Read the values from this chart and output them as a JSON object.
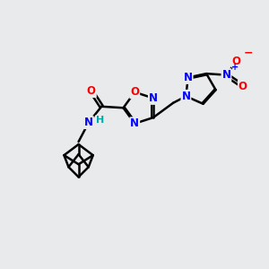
{
  "bg_color": "#e8eaec",
  "atom_colors": {
    "N": "#0000ff",
    "O": "#ff0000",
    "H": "#00aaaa"
  },
  "bond_color": "#000000",
  "bond_width": 1.8,
  "figsize": [
    3.0,
    3.0
  ],
  "dpi": 100,
  "xlim": [
    0,
    10
  ],
  "ylim": [
    0,
    10
  ]
}
